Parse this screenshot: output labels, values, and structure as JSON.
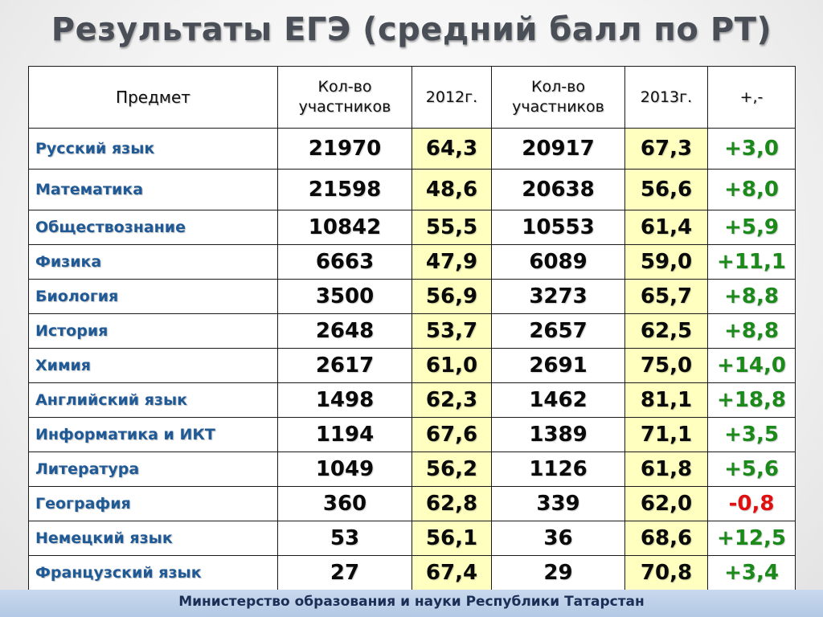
{
  "title": "Результаты ЕГЭ  (средний балл по РТ)",
  "table": {
    "headers": {
      "subject": "Предмет",
      "count_2012": "Кол-во участников",
      "score_2012": "2012г.",
      "count_2013": "Кол-во участников",
      "score_2013": "2013г.",
      "diff": "+,-"
    },
    "rows": [
      {
        "subject": "Русский язык",
        "count_2012": "21970",
        "score_2012": "64,3",
        "count_2013": "20917",
        "score_2013": "67,3",
        "diff": "+3,0"
      },
      {
        "subject": "Математика",
        "count_2012": "21598",
        "score_2012": "48,6",
        "count_2013": "20638",
        "score_2013": "56,6",
        "diff": "+8,0"
      },
      {
        "subject": "Обществознание",
        "count_2012": "10842",
        "score_2012": "55,5",
        "count_2013": "10553",
        "score_2013": "61,4",
        "diff": "+5,9"
      },
      {
        "subject": "Физика",
        "count_2012": "6663",
        "score_2012": "47,9",
        "count_2013": "6089",
        "score_2013": "59,0",
        "diff": "+11,1"
      },
      {
        "subject": "Биология",
        "count_2012": "3500",
        "score_2012": "56,9",
        "count_2013": "3273",
        "score_2013": "65,7",
        "diff": "+8,8"
      },
      {
        "subject": "История",
        "count_2012": "2648",
        "score_2012": "53,7",
        "count_2013": "2657",
        "score_2013": "62,5",
        "diff": "+8,8"
      },
      {
        "subject": "Химия",
        "count_2012": "2617",
        "score_2012": "61,0",
        "count_2013": "2691",
        "score_2013": "75,0",
        "diff": "+14,0"
      },
      {
        "subject": "Английский язык",
        "count_2012": "1498",
        "score_2012": "62,3",
        "count_2013": "1462",
        "score_2013": "81,1",
        "diff": "+18,8"
      },
      {
        "subject": "Информатика и ИКТ",
        "count_2012": "1194",
        "score_2012": "67,6",
        "count_2013": "1389",
        "score_2013": "71,1",
        "diff": "+3,5"
      },
      {
        "subject": "Литература",
        "count_2012": "1049",
        "score_2012": "56,2",
        "count_2013": "1126",
        "score_2013": "61,8",
        "diff": "+5,6"
      },
      {
        "subject": "География",
        "count_2012": "360",
        "score_2012": "62,8",
        "count_2013": "339",
        "score_2013": "62,0",
        "diff": "-0,8"
      },
      {
        "subject": "Немецкий язык",
        "count_2012": "53",
        "score_2012": "56,1",
        "count_2013": "36",
        "score_2013": "68,6",
        "diff": "+12,5"
      },
      {
        "subject": "Французский язык",
        "count_2012": "27",
        "score_2012": "67,4",
        "count_2013": "29",
        "score_2013": "70,8",
        "diff": "+3,4"
      }
    ]
  },
  "colors": {
    "subject_text": "#1f5a96",
    "positive_diff": "#1b8a1b",
    "negative_diff": "#e01010",
    "score_highlight": "#ffffc0",
    "footer_background": "#c3d5ec"
  },
  "footer": {
    "text": "Министерство образования и науки Республики Татарстан"
  }
}
